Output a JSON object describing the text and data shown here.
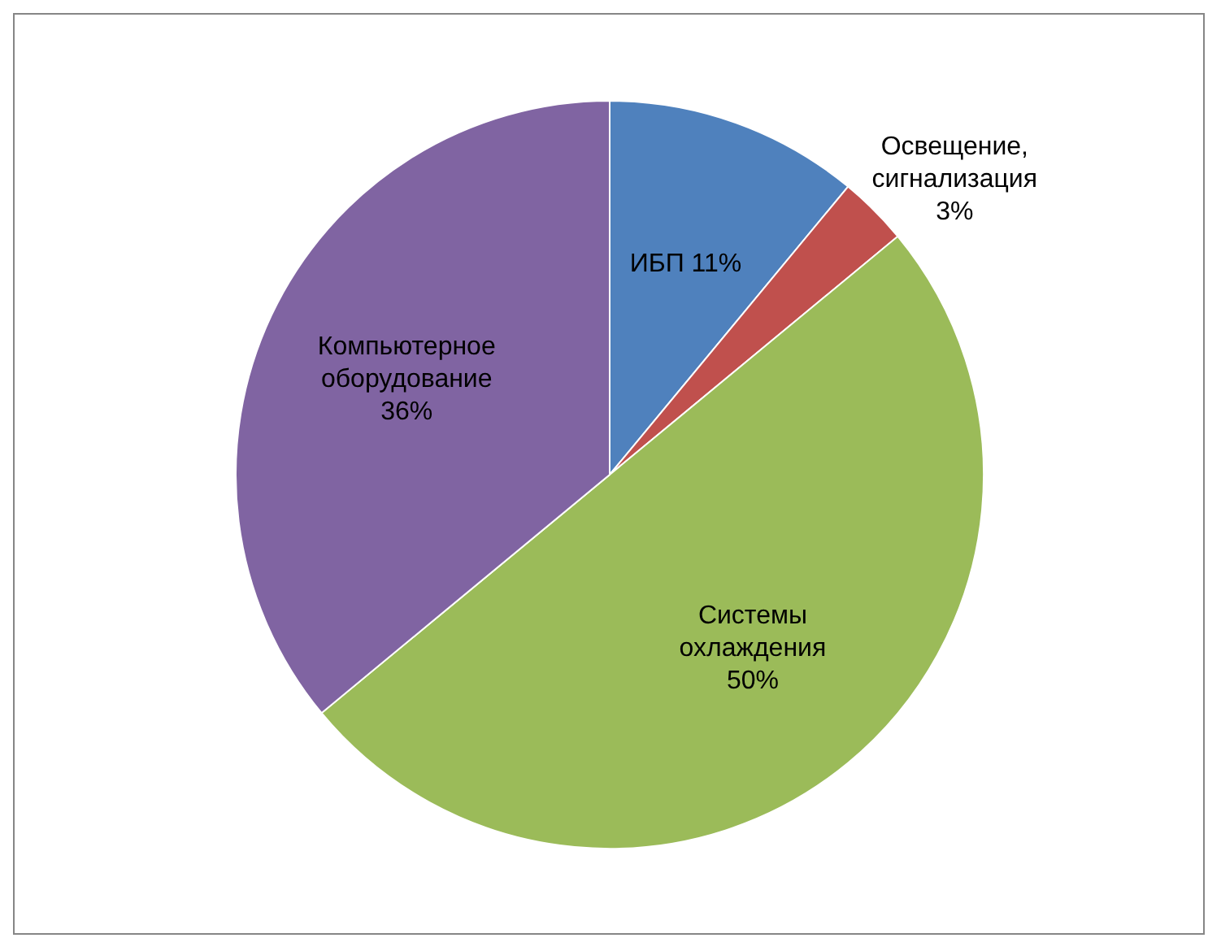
{
  "chart_data": {
    "type": "pie",
    "categories": [
      "ИБП",
      "Освещение, сигнализация",
      "Системы охлаждения",
      "Компьютерное оборудование"
    ],
    "values": [
      11,
      3,
      50,
      36
    ],
    "colors": [
      "#4f81bd",
      "#c0504d",
      "#9bbb59",
      "#8064a2"
    ],
    "value_labels": [
      "11%",
      "3%",
      "50%",
      "36%"
    ]
  }
}
